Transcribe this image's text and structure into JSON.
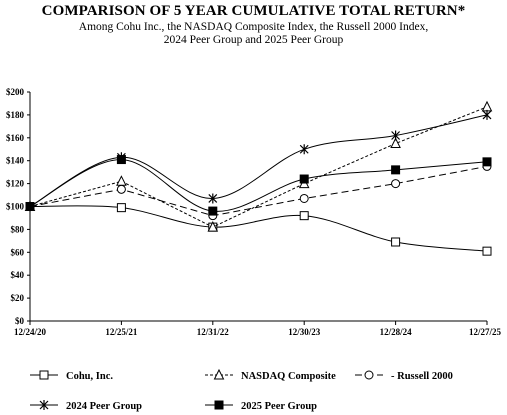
{
  "header": {
    "title": "COMPARISON OF 5 YEAR CUMULATIVE TOTAL RETURN*",
    "subtitle_line1": "Among Cohu Inc., the NASDAQ Composite Index, the Russell 2000 Index,",
    "subtitle_line2": "2024 Peer Group and 2025 Peer Group"
  },
  "chart_data": {
    "type": "line",
    "categories": [
      "12/24/20",
      "12/25/21",
      "12/31/22",
      "12/30/23",
      "12/28/24",
      "12/27/25"
    ],
    "y_tick_labels": [
      "$0",
      "$20",
      "$40",
      "$60",
      "$80",
      "$100",
      "$120",
      "$140",
      "$160",
      "$180",
      "$200"
    ],
    "ylim": [
      0,
      200
    ],
    "y_step": 20,
    "grid": false,
    "legend_position": "bottom",
    "series": [
      {
        "name": "Cohu, Inc.",
        "values": [
          100,
          99,
          82,
          92,
          69,
          61
        ],
        "marker": "square-open",
        "dash": "solid",
        "smooth": true
      },
      {
        "name": "NASDAQ Composite",
        "values": [
          100,
          122,
          82,
          120,
          155,
          187
        ],
        "marker": "triangle-open",
        "dash": "dotted",
        "smooth": false
      },
      {
        "name": "- Russell 2000",
        "values": [
          100,
          115,
          92,
          107,
          120,
          135
        ],
        "marker": "circle-open",
        "dash": "dashed",
        "smooth": false
      },
      {
        "name": "2024 Peer Group",
        "values": [
          100,
          143,
          107,
          150,
          162,
          180
        ],
        "marker": "star",
        "dash": "solid",
        "smooth": true
      },
      {
        "name": "2025 Peer Group",
        "values": [
          100,
          141,
          96,
          124,
          132,
          139
        ],
        "marker": "square-filled",
        "dash": "solid",
        "smooth": true
      }
    ]
  }
}
